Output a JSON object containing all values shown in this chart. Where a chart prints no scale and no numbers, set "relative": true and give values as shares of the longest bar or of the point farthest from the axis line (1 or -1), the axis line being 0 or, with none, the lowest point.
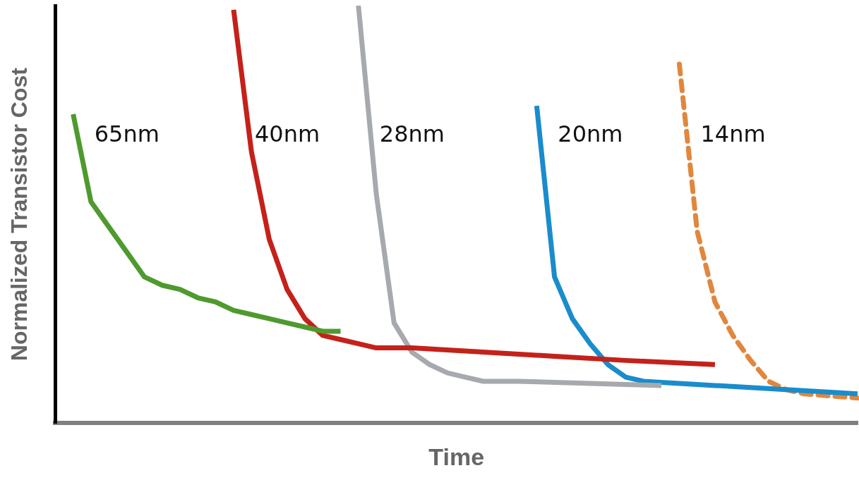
{
  "chart_data": {
    "type": "line",
    "relative": true,
    "xlabel": "Time",
    "ylabel": "Normalized Transistor Cost",
    "grid": false,
    "legend": false,
    "marker": "none",
    "categories": [
      null,
      null,
      null,
      null,
      null,
      null,
      null,
      null,
      null,
      null,
      null,
      null,
      null,
      null,
      null,
      null,
      null,
      null,
      null,
      null,
      null,
      null,
      null,
      null,
      null,
      null,
      null,
      null,
      null,
      null,
      null,
      null,
      null,
      null,
      null,
      null,
      null,
      null,
      null,
      null,
      null,
      null,
      null,
      null,
      null,
      null
    ],
    "series": [
      {
        "name": "65nm",
        "color": "#4e9a2e",
        "line_style": "solid",
        "values": [
          null,
          0.74,
          0.53,
          0.47,
          0.41,
          0.35,
          0.33,
          0.32,
          0.3,
          0.29,
          0.27,
          0.26,
          0.25,
          0.24,
          0.23,
          0.22,
          0.22,
          null,
          null,
          null,
          null,
          null,
          null,
          null,
          null,
          null,
          null,
          null,
          null,
          null,
          null,
          null,
          null,
          null,
          null,
          null,
          null,
          null,
          null,
          null,
          null,
          null,
          null,
          null,
          null,
          null
        ]
      },
      {
        "name": "40nm",
        "color": "#c4211a",
        "line_style": "solid",
        "values": [
          null,
          null,
          null,
          null,
          null,
          null,
          null,
          null,
          null,
          null,
          0.99,
          0.65,
          0.44,
          0.32,
          0.25,
          0.21,
          0.2,
          0.19,
          0.18,
          null,
          0.18,
          null,
          null,
          null,
          0.17,
          null,
          null,
          null,
          0.16,
          null,
          null,
          null,
          0.15,
          null,
          null,
          null,
          null,
          0.14,
          null,
          null,
          null,
          null,
          null,
          null,
          null,
          null
        ]
      },
      {
        "name": "28nm",
        "color": "#a6a9ad",
        "line_style": "solid",
        "values": [
          null,
          null,
          null,
          null,
          null,
          null,
          null,
          null,
          null,
          null,
          null,
          null,
          null,
          null,
          null,
          null,
          null,
          1,
          0.55,
          0.24,
          0.17,
          0.14,
          0.12,
          0.11,
          0.1,
          null,
          0.1,
          null,
          null,
          null,
          null,
          null,
          null,
          null,
          0.09,
          null,
          null,
          null,
          null,
          null,
          null,
          null,
          null,
          null,
          null,
          null
        ]
      },
      {
        "name": "20nm",
        "color": "#1a8ccc",
        "line_style": "solid",
        "values": [
          null,
          null,
          null,
          null,
          null,
          null,
          null,
          null,
          null,
          null,
          null,
          null,
          null,
          null,
          null,
          null,
          null,
          null,
          null,
          null,
          null,
          null,
          null,
          null,
          null,
          null,
          null,
          0.76,
          0.35,
          0.25,
          0.19,
          0.14,
          0.11,
          0.1,
          null,
          null,
          null,
          0.09,
          null,
          null,
          null,
          null,
          null,
          null,
          null,
          0.07
        ]
      },
      {
        "name": "14nm",
        "color": "#e0873e",
        "line_style": "dashed",
        "values": [
          null,
          null,
          null,
          null,
          null,
          null,
          null,
          null,
          null,
          null,
          null,
          null,
          null,
          null,
          null,
          null,
          null,
          null,
          null,
          null,
          null,
          null,
          null,
          null,
          null,
          null,
          null,
          null,
          null,
          null,
          null,
          null,
          null,
          null,
          null,
          0.86,
          0.46,
          0.29,
          0.21,
          0.15,
          0.1,
          0.08,
          0.07,
          null,
          null,
          0.06
        ]
      }
    ]
  }
}
